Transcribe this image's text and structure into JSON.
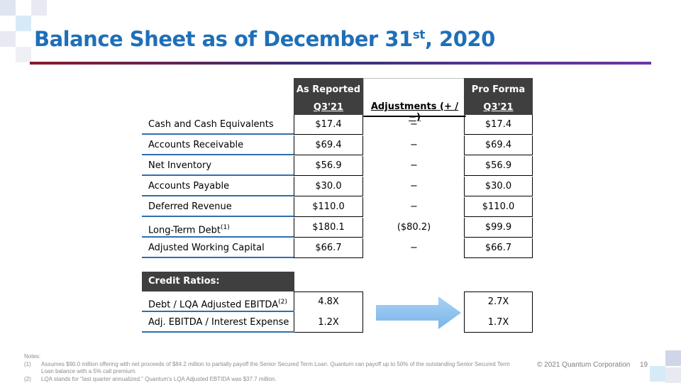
{
  "slide": {
    "title_main": "Balance Sheet as of December 31",
    "title_sup": "st",
    "title_end": ", 2020",
    "page_number": "19",
    "footer": "© 2021 Quantum Corporation"
  },
  "table": {
    "headers": {
      "reported_line1": "As Reported",
      "reported_line2": "Q3'21",
      "adjust_line2": "Adjustments (+ / −)",
      "proforma_line1": "Pro Forma",
      "proforma_line2": "Q3'21"
    },
    "rows": [
      {
        "label": "Cash and Cash Equivalents",
        "sup": "",
        "reported": "$17.4",
        "adjustment": "−",
        "pro_forma": "$17.4"
      },
      {
        "label": "Accounts Receivable",
        "sup": "",
        "reported": "$69.4",
        "adjustment": "−",
        "pro_forma": "$69.4"
      },
      {
        "label": "Net Inventory",
        "sup": "",
        "reported": "$56.9",
        "adjustment": "−",
        "pro_forma": "$56.9"
      },
      {
        "label": "Accounts Payable",
        "sup": "",
        "reported": "$30.0",
        "adjustment": "−",
        "pro_forma": "$30.0"
      },
      {
        "label": "Deferred Revenue",
        "sup": "",
        "reported": "$110.0",
        "adjustment": "−",
        "pro_forma": "$110.0"
      },
      {
        "label": "Long-Term Debt",
        "sup": "(1)",
        "reported": "$180.1",
        "adjustment": "($80.2)",
        "pro_forma": "$99.9"
      },
      {
        "label": "Adjusted Working Capital",
        "sup": "",
        "reported": "$66.7",
        "adjustment": "−",
        "pro_forma": "$66.7"
      }
    ]
  },
  "credit": {
    "header": "Credit Ratios:",
    "rows": [
      {
        "label": "Debt / LQA Adjusted EBITDA",
        "sup": "(2)",
        "reported": "4.8X",
        "pro_forma": "2.7X"
      },
      {
        "label": "Adj. EBITDA / Interest Expense",
        "sup": "",
        "reported": "1.2X",
        "pro_forma": "1.7X"
      }
    ]
  },
  "notes": {
    "heading": "Notes:",
    "items": [
      {
        "num": "(1)",
        "text": "Assumes $90.0 million offering with net proceeds of $84.2 million to partially payoff the Senior Secured Term Loan.  Quantum can payoff up to 50% of the outstanding Senior Secured Term Loan balance with a 5% call premium."
      },
      {
        "num": "(2)",
        "text": "LQA stands for \"last quarter annualized.\" Quantum's LQA Adjusted EBTIDA was $37.7 million."
      }
    ]
  },
  "colors": {
    "title": "#1f6fb8",
    "header_bg": "#3f3f3f",
    "row_rule": "#2f6fb0",
    "arrow": "#8fc1ee"
  },
  "icons": {
    "arrow": "right-arrow-icon"
  }
}
